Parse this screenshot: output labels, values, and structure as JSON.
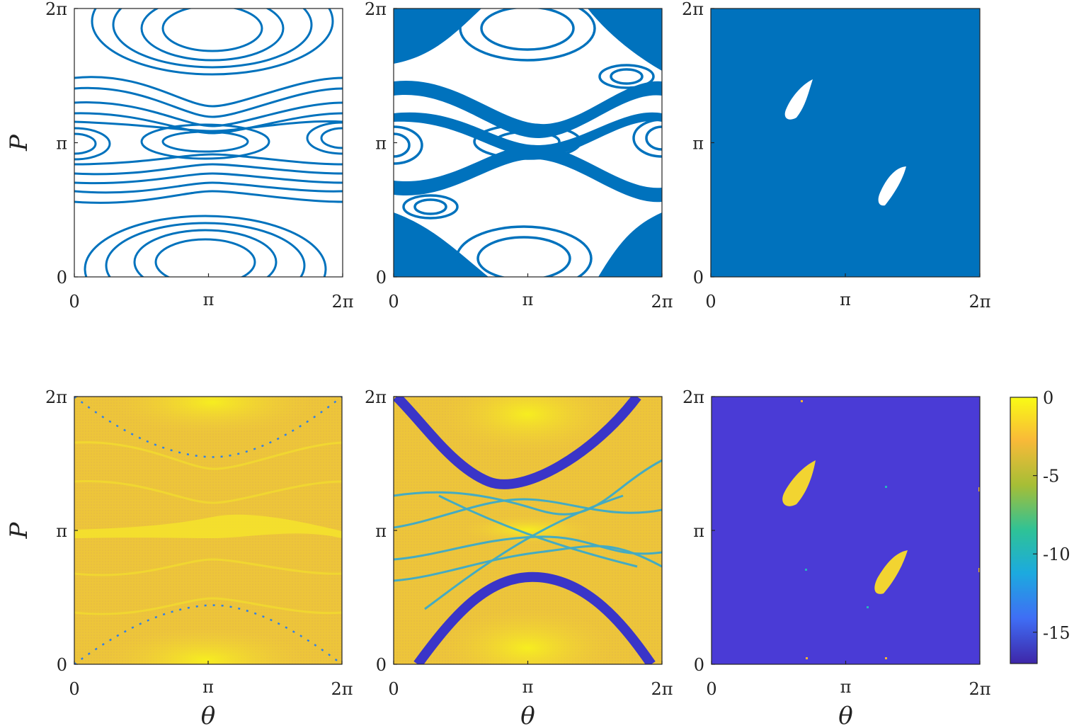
{
  "chart_data": [
    {
      "type": "scatter",
      "panel": "top-left",
      "xlabel": "",
      "ylabel": "P",
      "xticks": [
        "0",
        "π",
        "2π"
      ],
      "yticks": [
        "0",
        "π",
        "2π"
      ],
      "xlim": [
        0,
        6.2832
      ],
      "ylim": [
        0,
        6.2832
      ],
      "point_color": "#0072BD",
      "description_regime": "regular"
    },
    {
      "type": "scatter",
      "panel": "top-center",
      "xlabel": "",
      "ylabel": "",
      "xticks": [
        "0",
        "π",
        "2π"
      ],
      "yticks": [
        "0",
        "π",
        "2π"
      ],
      "xlim": [
        0,
        6.2832
      ],
      "ylim": [
        0,
        6.2832
      ],
      "point_color": "#0072BD",
      "description_regime": "mixed"
    },
    {
      "type": "scatter",
      "panel": "top-right",
      "xlabel": "",
      "ylabel": "",
      "xticks": [
        "0",
        "π",
        "2π"
      ],
      "yticks": [
        "0",
        "π",
        "2π"
      ],
      "xlim": [
        0,
        6.2832
      ],
      "ylim": [
        0,
        6.2832
      ],
      "point_color": "#0072BD",
      "islands": [
        {
          "theta": 2.0,
          "P": 4.15
        },
        {
          "theta": 4.2,
          "P": 2.05
        }
      ],
      "description_regime": "chaotic"
    },
    {
      "type": "heatmap",
      "panel": "bottom-left",
      "xlabel": "θ",
      "ylabel": "P",
      "xticks": [
        "0",
        "π",
        "2π"
      ],
      "yticks": [
        "0",
        "π",
        "2π"
      ],
      "xlim": [
        0,
        6.2832
      ],
      "ylim": [
        0,
        6.2832
      ]
    },
    {
      "type": "heatmap",
      "panel": "bottom-center",
      "xlabel": "θ",
      "ylabel": "",
      "xticks": [
        "0",
        "π",
        "2π"
      ],
      "yticks": [
        "0",
        "π",
        "2π"
      ],
      "xlim": [
        0,
        6.2832
      ],
      "ylim": [
        0,
        6.2832
      ]
    },
    {
      "type": "heatmap",
      "panel": "bottom-right",
      "xlabel": "θ",
      "ylabel": "",
      "xticks": [
        "0",
        "π",
        "2π"
      ],
      "yticks": [
        "0",
        "π",
        "2π"
      ],
      "xlim": [
        0,
        6.2832
      ],
      "ylim": [
        0,
        6.2832
      ],
      "islands": [
        {
          "theta": 2.1,
          "P": 4.45
        },
        {
          "theta": 4.3,
          "P": 2.2
        }
      ]
    }
  ],
  "colorbar": {
    "range": [
      -17,
      0
    ],
    "ticks": [
      "0",
      "-5",
      "-10",
      "-15"
    ],
    "tick_values": [
      0,
      -5,
      -10,
      -15
    ],
    "colormap": "parula",
    "colors": [
      "#3E26A8",
      "#3F6EF5",
      "#1CAADF",
      "#2EC297",
      "#A6BE36",
      "#F9BA38",
      "#F9FB15"
    ]
  }
}
